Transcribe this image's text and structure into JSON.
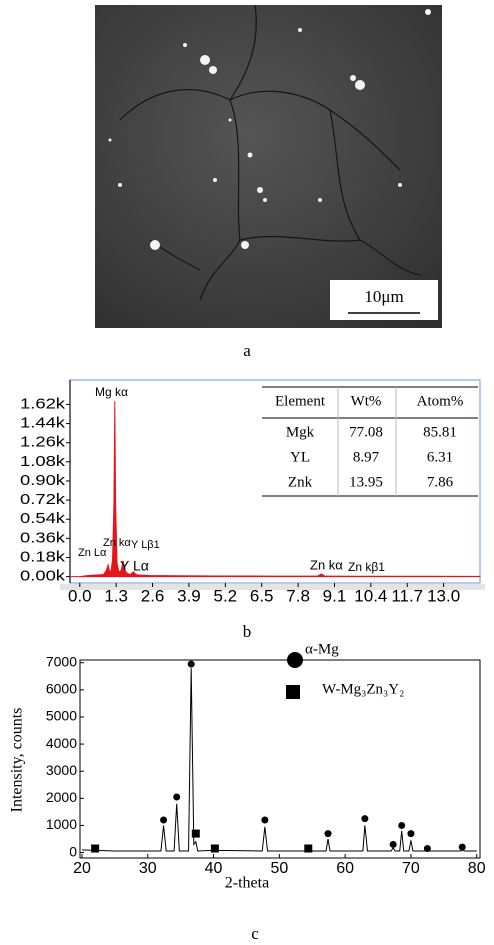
{
  "captions": [
    "a",
    "b",
    "c"
  ],
  "image_panel": {
    "scale_bar": "10μm"
  },
  "eds_table": {
    "columns": [
      "Element",
      "Wt%",
      "Atom%"
    ],
    "rows": [
      [
        "Mgk",
        "77.08",
        "85.81"
      ],
      [
        "YL",
        "8.97",
        "6.31"
      ],
      [
        "Znk",
        "13.95",
        "7.86"
      ]
    ]
  },
  "chart_data": [
    {
      "type": "area",
      "x": [
        -0.35,
        0,
        0.3,
        0.6,
        0.85,
        0.95,
        1.01,
        1.07,
        1.12,
        1.17,
        1.22,
        1.25,
        1.28,
        1.33,
        1.4,
        1.48,
        1.55,
        1.6,
        1.7,
        1.8,
        1.92,
        2.0,
        2.1,
        2.5,
        3.5,
        5,
        7,
        8.5,
        8.63,
        8.75,
        9,
        10,
        12,
        14.3
      ],
      "series": [
        {
          "color": "#e8141c",
          "values": [
            0,
            0,
            10,
            15,
            20,
            60,
            110,
            40,
            60,
            160,
            700,
            1650,
            700,
            130,
            40,
            60,
            150,
            60,
            30,
            20,
            45,
            20,
            15,
            10,
            8,
            6,
            5,
            5,
            25,
            5,
            5,
            4,
            3,
            2
          ]
        }
      ],
      "xlim": [
        -0.35,
        14.3
      ],
      "xticks": [
        {
          "value": 0,
          "label": "0.0"
        },
        1.3,
        2.6,
        3.9,
        5.2,
        6.5,
        7.8,
        9.1,
        10.4,
        11.7,
        {
          "value": 13,
          "label": "13.0"
        }
      ],
      "ylim": [
        -60,
        1850
      ],
      "yticks": [
        {
          "value": 0,
          "label": "0.00k"
        },
        {
          "value": 180,
          "label": "0.18k"
        },
        {
          "value": 360,
          "label": "0.36k"
        },
        {
          "value": 540,
          "label": "0.54k"
        },
        {
          "value": 720,
          "label": "0.72k"
        },
        {
          "value": 900,
          "label": "0.90k"
        },
        {
          "value": 1080,
          "label": "1.08k"
        },
        {
          "value": 1260,
          "label": "1.26k"
        },
        {
          "value": 1440,
          "label": "1.44k"
        },
        {
          "value": 1620,
          "label": "1.62k"
        }
      ],
      "annotations": [
        "Mg kα",
        "Zn Lα",
        "Zn kα",
        "Y Lβ1",
        "Y Lα",
        "Zn kα",
        "Zn kβ1"
      ]
    },
    {
      "type": "line",
      "xlabel": "2-theta",
      "ylabel": "Intensity, counts",
      "x": [
        20,
        22,
        25,
        28,
        30,
        32,
        32.4,
        32.8,
        34,
        34.4,
        34.8,
        36.2,
        36.6,
        37.0,
        37.3,
        37.6,
        40,
        47.4,
        47.8,
        48.2,
        57.1,
        57.4,
        57.7,
        62.7,
        63.0,
        63.4,
        67.0,
        67.3,
        67.6,
        68.3,
        68.6,
        68.9,
        69.7,
        70.0,
        70.3,
        72.3,
        72.5,
        72.8,
        77.6,
        77.8,
        78.1,
        80
      ],
      "series": [
        {
          "color": "#000000",
          "values": [
            100,
            80,
            60,
            60,
            60,
            60,
            1000,
            60,
            60,
            1800,
            60,
            60,
            6800,
            300,
            400,
            60,
            80,
            60,
            950,
            60,
            60,
            500,
            60,
            60,
            1000,
            60,
            60,
            180,
            60,
            60,
            800,
            60,
            60,
            450,
            60,
            60,
            90,
            60,
            60,
            100,
            60,
            60
          ]
        },
        {
          "name": "α-Mg",
          "marker": "circle",
          "color": "#000000",
          "x": [
            32.4,
            34.4,
            36.6,
            47.8,
            57.4,
            63.0,
            67.3,
            68.6,
            70.0,
            72.5,
            77.8
          ],
          "values": [
            1200,
            2050,
            6950,
            1200,
            700,
            1250,
            300,
            1000,
            700,
            150,
            200
          ]
        },
        {
          "name": "W-Mg₃Zn₃Y₂",
          "marker": "square",
          "color": "#000000",
          "x": [
            22,
            37.3,
            40.2,
            54.4
          ],
          "values": [
            150,
            700,
            150,
            150
          ]
        }
      ],
      "xlim": [
        19.7,
        80.5
      ],
      "xticks": [
        20,
        30,
        40,
        50,
        60,
        70,
        80
      ],
      "ylim": [
        -200,
        7100
      ],
      "yticks": [
        0,
        1000,
        2000,
        3000,
        4000,
        5000,
        6000,
        7000
      ]
    }
  ]
}
